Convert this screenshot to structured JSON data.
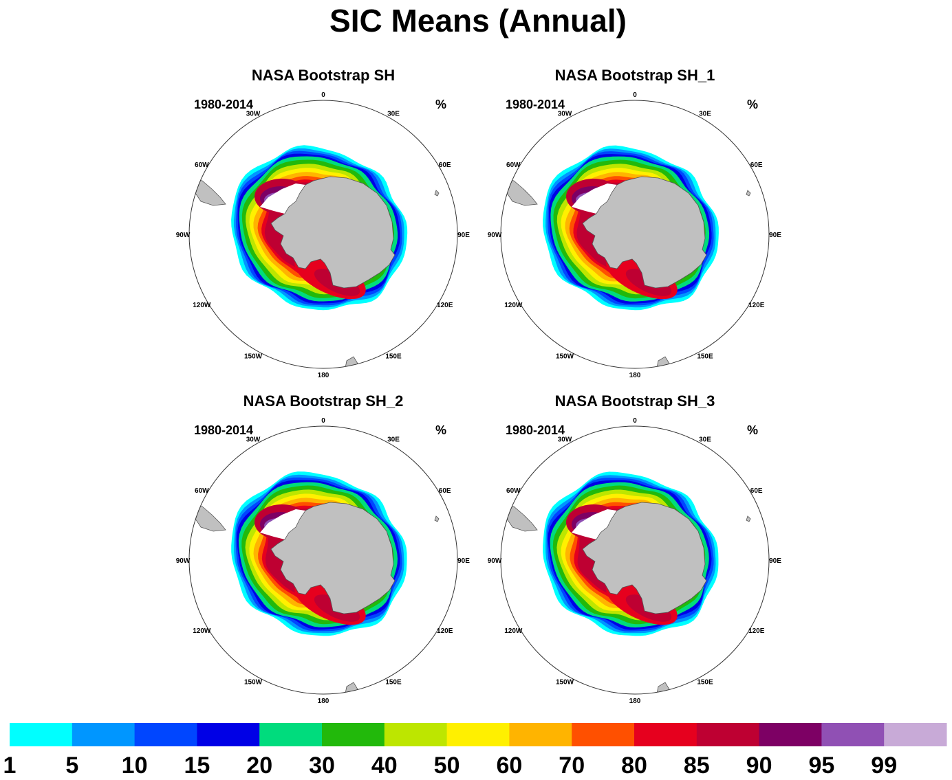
{
  "title": "SIC Means (Annual)",
  "colors": {
    "land": "#c0c0c0",
    "coast": "#555555",
    "outline": "#333333"
  },
  "panels": [
    {
      "title": "NASA Bootstrap SH",
      "period": "1980-2014",
      "units": "%"
    },
    {
      "title": "NASA Bootstrap SH_1",
      "period": "1980-2014",
      "units": "%"
    },
    {
      "title": "NASA Bootstrap SH_2",
      "period": "1980-2014",
      "units": "%"
    },
    {
      "title": "NASA Bootstrap SH_3",
      "period": "1980-2014",
      "units": "%"
    }
  ],
  "longitude_labels": [
    "0",
    "30E",
    "60E",
    "90E",
    "120E",
    "150E",
    "180",
    "150W",
    "120W",
    "90W",
    "60W",
    "30W"
  ],
  "colorbar": {
    "colors": [
      "#00ffff",
      "#0096ff",
      "#0046ff",
      "#0000e6",
      "#00dc7d",
      "#22b90b",
      "#bde600",
      "#fff000",
      "#ffb400",
      "#ff5000",
      "#e6001e",
      "#be0032",
      "#7d0064",
      "#9050b4",
      "#c8aad7"
    ],
    "labels": [
      "1",
      "5",
      "10",
      "15",
      "20",
      "30",
      "40",
      "50",
      "60",
      "70",
      "80",
      "85",
      "90",
      "95",
      "99"
    ]
  }
}
